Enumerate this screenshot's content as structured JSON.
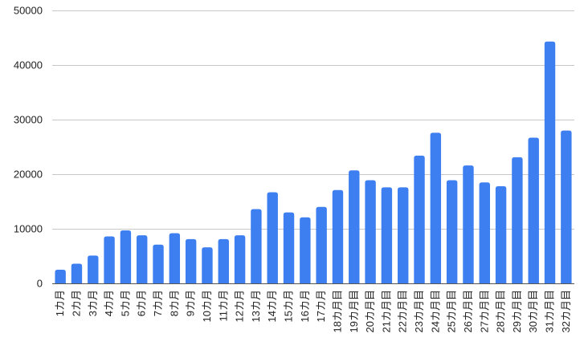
{
  "chart_data": {
    "type": "bar",
    "title": "",
    "xlabel": "",
    "ylabel": "",
    "ylim": [
      0,
      50000
    ],
    "yticks": [
      0,
      10000,
      20000,
      30000,
      40000,
      50000
    ],
    "ytick_labels": [
      "0",
      "10000",
      "20000",
      "30000",
      "40000",
      "50000"
    ],
    "grid": true,
    "legend": "none",
    "bar_color": "#3d7ff0",
    "grid_color": "#c8c8c8",
    "axis_color": "#555555",
    "categories": [
      "1カ月",
      "2カ月",
      "3カ月",
      "4カ月",
      "5カ月",
      "6カ月",
      "7カ月",
      "8カ月",
      "9カ月",
      "10カ月",
      "11カ月",
      "12カ月",
      "13カ月",
      "14カ月",
      "15カ月",
      "16カ月",
      "17カ月",
      "18カ月目",
      "19カ月目",
      "20カ月目",
      "21カ月目",
      "22カ月目",
      "23カ月目",
      "24カ月目",
      "25カ月目",
      "26カ月目",
      "27カ月目",
      "28カ月目",
      "29カ月目",
      "30カ月目",
      "31カ月目",
      "32カ月目"
    ],
    "values": [
      2500,
      3600,
      5100,
      8600,
      9700,
      8800,
      7100,
      9200,
      8100,
      6600,
      8100,
      8800,
      13600,
      16700,
      13000,
      12100,
      14000,
      17100,
      20700,
      18900,
      17600,
      17600,
      23400,
      27600,
      18900,
      21600,
      18500,
      17800,
      23100,
      26700,
      44300,
      28000
    ]
  }
}
